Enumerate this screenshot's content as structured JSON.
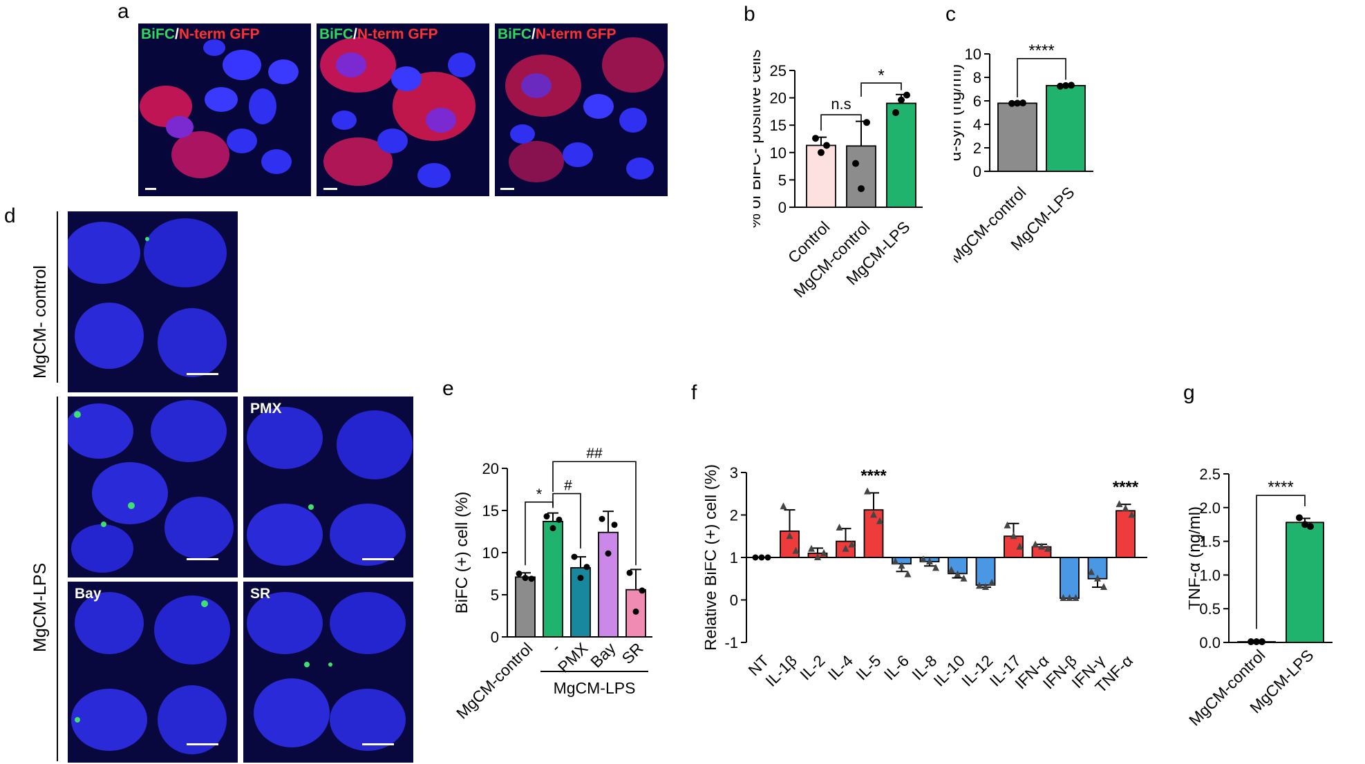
{
  "panels": {
    "a": "a",
    "b": "b",
    "c": "c",
    "d": "d",
    "e": "e",
    "f": "f",
    "g": "g"
  },
  "panel_a": {
    "overlay_green": "BiFC",
    "overlay_sep": "/",
    "overlay_red": "N-term GFP"
  },
  "panel_d": {
    "group_control": "MgCM- control",
    "group_lps": "MgCM-LPS",
    "labels": [
      "PMX",
      "Bay",
      "SR"
    ]
  },
  "colors": {
    "control_pink": "#fde0e0",
    "gray": "#8c8c8c",
    "green": "#1fb36e",
    "teal": "#17889e",
    "violet": "#cc88e8",
    "pink": "#f08bb4",
    "red": "#ee3b3b",
    "blue": "#4a98e4"
  },
  "chart_data": [
    {
      "panel": "b",
      "type": "bar",
      "categories": [
        "Control",
        "MgCM-control",
        "MgCM-LPS"
      ],
      "values": [
        11.3,
        11.2,
        19.0
      ],
      "errors": [
        1.5,
        4.5,
        1.6
      ],
      "points": [
        [
          12.6,
          10.0,
          11.3
        ],
        [
          8.0,
          3.4,
          15.5
        ],
        [
          17.3,
          19.6,
          20.5
        ]
      ],
      "ylabel": "% of BiFC- positive cells",
      "ylim": [
        0,
        25
      ],
      "yticks": [
        0,
        5,
        10,
        15,
        20,
        25
      ],
      "annotations": [
        {
          "text": "n.s",
          "from": "Control",
          "to": "MgCM-control"
        },
        {
          "text": "*",
          "from": "MgCM-control",
          "to": "MgCM-LPS"
        }
      ]
    },
    {
      "panel": "c",
      "type": "bar",
      "categories": [
        "MgCM-control",
        "MgCM-LPS"
      ],
      "values": [
        5.8,
        7.3
      ],
      "errors": [
        0.04,
        0.06
      ],
      "points": [
        [
          5.78,
          5.8,
          5.82
        ],
        [
          7.25,
          7.3,
          7.33
        ]
      ],
      "ylabel": "α-syn (ng/ml)",
      "ylim": [
        0,
        10
      ],
      "yticks": [
        0,
        2,
        4,
        6,
        8,
        10
      ],
      "annotations": [
        {
          "text": "****",
          "from": "MgCM-control",
          "to": "MgCM-LPS"
        }
      ]
    },
    {
      "panel": "e",
      "type": "bar",
      "categories": [
        "MgCM-control",
        "-",
        "PMX",
        "Bay",
        "SR"
      ],
      "values": [
        7.1,
        13.7,
        8.2,
        12.4,
        5.6
      ],
      "errors": [
        0.5,
        1.0,
        1.3,
        2.5,
        2.4
      ],
      "points": [
        [
          7.5,
          7.0,
          6.9
        ],
        [
          14.3,
          12.9,
          13.9
        ],
        [
          9.5,
          7.0,
          8.3
        ],
        [
          14.0,
          9.9,
          13.3
        ],
        [
          7.6,
          3.0,
          5.5
        ]
      ],
      "ylabel": "BiFC (+) cell (%)",
      "ylim": [
        0,
        20
      ],
      "yticks": [
        0,
        5,
        10,
        15,
        20
      ],
      "group_label": "MgCM-LPS",
      "annotations": [
        {
          "text": "*",
          "from": "MgCM-control",
          "to": "-"
        },
        {
          "text": "#",
          "from": "-",
          "to": "PMX"
        },
        {
          "text": "##",
          "from": "-",
          "to": "SR"
        }
      ]
    },
    {
      "panel": "f",
      "type": "bar",
      "categories": [
        "NT",
        "IL-1β",
        "IL-2",
        "IL-4",
        "IL-5",
        "IL-6",
        "IL-8",
        "IL-10",
        "IL-12",
        "IL-17",
        "IFN-α",
        "IFN-β",
        "IFN-γ",
        "TNF-α"
      ],
      "values": [
        1.0,
        1.62,
        1.1,
        1.38,
        2.12,
        0.85,
        0.9,
        0.62,
        0.35,
        1.5,
        1.25,
        0.04,
        0.5,
        2.1
      ],
      "errors": [
        0.0,
        0.5,
        0.12,
        0.3,
        0.4,
        0.18,
        0.1,
        0.1,
        0.05,
        0.3,
        0.06,
        0.0,
        0.2,
        0.15
      ],
      "points": [
        [
          1.0,
          1.0,
          1.0
        ],
        [
          2.2,
          1.5,
          1.15
        ],
        [
          1.2,
          1.0,
          1.1
        ],
        [
          1.7,
          1.2,
          1.3
        ],
        [
          2.55,
          2.0,
          1.85
        ],
        [
          0.9,
          0.8,
          0.6
        ],
        [
          0.95,
          0.9,
          0.75
        ],
        [
          0.7,
          0.6,
          0.5
        ],
        [
          0.33,
          0.3,
          0.4
        ],
        [
          1.75,
          1.5,
          1.25
        ],
        [
          1.3,
          1.25,
          1.2
        ],
        [
          0.04,
          0.04,
          0.04
        ],
        [
          0.65,
          0.5,
          0.3
        ],
        [
          2.25,
          2.15,
          2.0
        ]
      ],
      "bar_colors": [
        "#000000",
        "#ee3b3b",
        "#ee3b3b",
        "#ee3b3b",
        "#ee3b3b",
        "#4a98e4",
        "#4a98e4",
        "#4a98e4",
        "#4a98e4",
        "#ee3b3b",
        "#ee3b3b",
        "#4a98e4",
        "#4a98e4",
        "#ee3b3b"
      ],
      "ylabel": "Relative BiFC (+) cell (%)",
      "ylim": [
        -1,
        3
      ],
      "yticks": [
        -1,
        0,
        1,
        2,
        3
      ],
      "baseline": 1,
      "annotations": [
        {
          "text": "****",
          "at": "IL-5"
        },
        {
          "text": "****",
          "at": "TNF-α"
        }
      ]
    },
    {
      "panel": "g",
      "type": "bar",
      "categories": [
        "MgCM-control",
        "MgCM-LPS"
      ],
      "values": [
        0.01,
        1.78
      ],
      "errors": [
        0.0,
        0.06
      ],
      "points": [
        [
          0.01,
          0.01,
          0.01
        ],
        [
          1.85,
          1.75,
          1.72
        ]
      ],
      "ylabel": "TNF-α (ng/ml)",
      "ylim": [
        0,
        2.5
      ],
      "yticks": [
        0.0,
        0.5,
        1.0,
        1.5,
        2.0,
        2.5
      ],
      "annotations": [
        {
          "text": "****",
          "from": "MgCM-control",
          "to": "MgCM-LPS"
        }
      ]
    }
  ]
}
